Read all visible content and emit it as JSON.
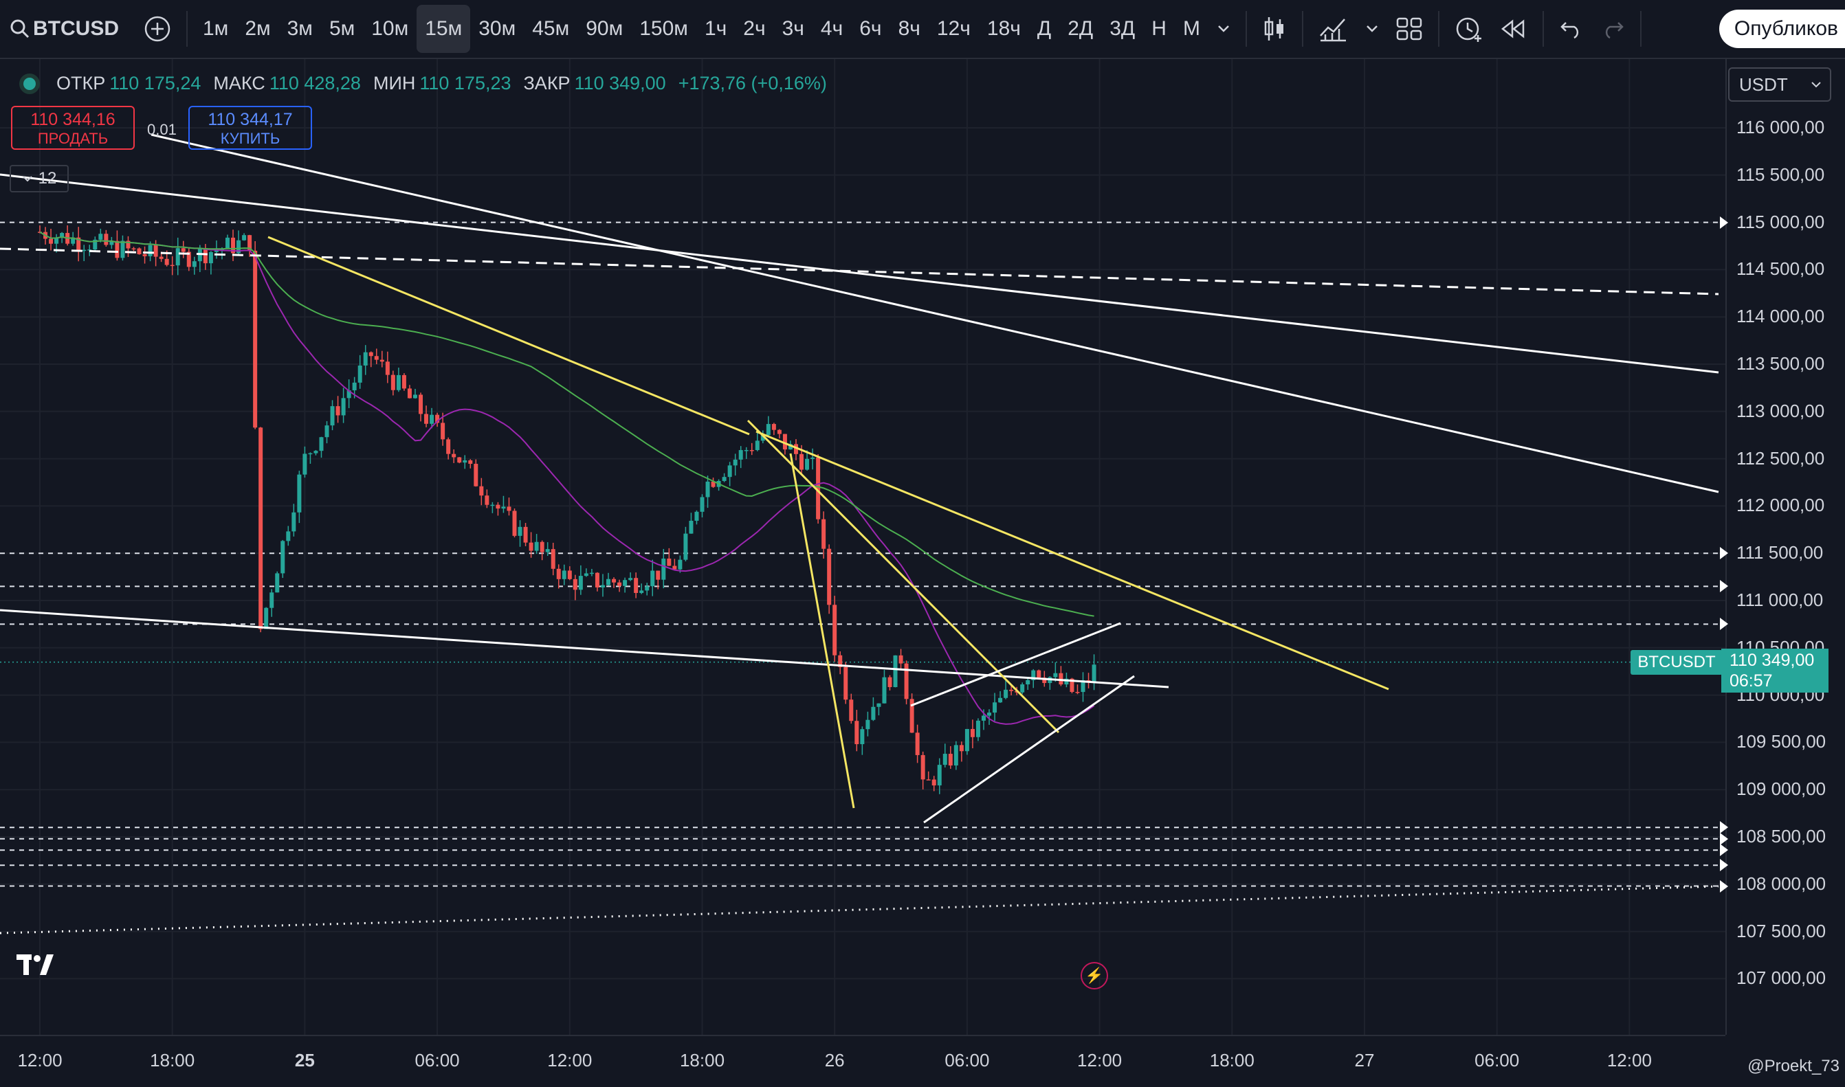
{
  "toolbar": {
    "symbol": "BTCUSD",
    "intervals": [
      "1м",
      "2м",
      "3м",
      "5м",
      "10м",
      "15м",
      "30м",
      "45м",
      "90м",
      "150м",
      "1ч",
      "2ч",
      "3ч",
      "4ч",
      "6ч",
      "8ч",
      "12ч",
      "18ч",
      "Д",
      "2Д",
      "3Д",
      "Н",
      "М"
    ],
    "active_interval": "15м",
    "publish_label": "Опубликов"
  },
  "legend": {
    "open_label": "ОТКР",
    "open": "110 175,24",
    "high_label": "МАКС",
    "high": "110 428,28",
    "low_label": "МИН",
    "low": "110 175,23",
    "close_label": "ЗАКР",
    "close": "110 349,00",
    "change": "+173,76 (+0,16%)"
  },
  "trade": {
    "sell_price": "110 344,16",
    "sell_label": "ПРОДАТЬ",
    "lot": "0,01",
    "buy_price": "110 344,17",
    "buy_label": "КУПИТЬ"
  },
  "indicator_count": "12",
  "currency": "USDT",
  "price_axis": [
    "116 000,00",
    "115 500,00",
    "115 000,00",
    "114 500,00",
    "114 000,00",
    "113 500,00",
    "113 000,00",
    "112 500,00",
    "112 000,00",
    "111 500,00",
    "111 000,00",
    "110 500,00",
    "110 000,00",
    "109 500,00",
    "109 000,00",
    "108 500,00",
    "108 000,00",
    "107 500,00",
    "107 000,00"
  ],
  "time_axis": [
    {
      "label": "12:00",
      "bold": false
    },
    {
      "label": "18:00",
      "bold": false
    },
    {
      "label": "25",
      "bold": true
    },
    {
      "label": "06:00",
      "bold": false
    },
    {
      "label": "12:00",
      "bold": false
    },
    {
      "label": "18:00",
      "bold": false
    },
    {
      "label": "26",
      "bold": false
    },
    {
      "label": "06:00",
      "bold": false
    },
    {
      "label": "12:00",
      "bold": false
    },
    {
      "label": "18:00",
      "bold": false
    },
    {
      "label": "27",
      "bold": false
    },
    {
      "label": "06:00",
      "bold": false
    },
    {
      "label": "12:00",
      "bold": false
    }
  ],
  "price_tag": {
    "symbol": "BTCUSDT",
    "price": "110 349,00",
    "countdown": "06:57"
  },
  "author": "@Proekt_73",
  "colors": {
    "up": "#26a69a",
    "down": "#ef5350",
    "trendline_yellow": "#f5e663",
    "ma_purple": "#9c27b0",
    "ma_green": "#4caf50",
    "bg": "#131722"
  },
  "chart_data": {
    "type": "candlestick",
    "symbol": "BTCUSD",
    "interval": "15м",
    "ylim": [
      106800,
      116300
    ],
    "xlabel": "",
    "ylabel": "",
    "last_close": 110349.0,
    "horizontal_levels": [
      115000,
      111500,
      111150,
      110750,
      108600,
      108480,
      108360,
      108200,
      107980
    ],
    "approx_path": [
      [
        "24 12:00",
        114900
      ],
      [
        "24 18:00",
        114600
      ],
      [
        "24 21:30",
        114800
      ],
      [
        "24 22:00",
        110700
      ],
      [
        "25 00:00",
        112500
      ],
      [
        "25 03:00",
        113600
      ],
      [
        "25 06:00",
        112800
      ],
      [
        "25 09:00",
        111900
      ],
      [
        "25 12:00",
        111200
      ],
      [
        "25 15:00",
        111200
      ],
      [
        "25 17:00",
        111400
      ],
      [
        "25 18:00",
        112200
      ],
      [
        "25 21:00",
        112800
      ],
      [
        "25 23:00",
        112400
      ],
      [
        "26 00:00",
        110500
      ],
      [
        "26 01:00",
        109600
      ],
      [
        "26 03:00",
        110400
      ],
      [
        "26 04:00",
        109000
      ],
      [
        "26 07:00",
        109800
      ],
      [
        "26 09:00",
        110300
      ],
      [
        "26 11:00",
        110000
      ],
      [
        "26 12:00",
        110349
      ]
    ]
  }
}
